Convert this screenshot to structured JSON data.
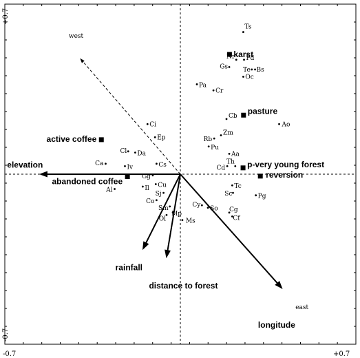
{
  "chart_data": {
    "type": "scatter",
    "title": "",
    "xlabel": "",
    "ylabel": "",
    "xlim": [
      -0.7,
      0.7
    ],
    "ylim": [
      -0.7,
      0.7
    ],
    "x_ticks": [
      "-0.7",
      "+0.7"
    ],
    "y_ticks": [
      "-0.7",
      "+0.7"
    ],
    "grid": false,
    "origin_lines": "dashed",
    "species": [
      {
        "label": "Ts",
        "x": 0.251,
        "y": 0.585
      },
      {
        "label": "Nr",
        "x": 0.223,
        "y": 0.471
      },
      {
        "label": "Pd",
        "x": 0.254,
        "y": 0.471
      },
      {
        "label": "Gs",
        "x": 0.195,
        "y": 0.441
      },
      {
        "label": "Te",
        "x": 0.285,
        "y": 0.431
      },
      {
        "label": "Bs",
        "x": 0.298,
        "y": 0.431
      },
      {
        "label": "Oc",
        "x": 0.251,
        "y": 0.401
      },
      {
        "label": "Pa",
        "x": 0.066,
        "y": 0.37
      },
      {
        "label": "Cr",
        "x": 0.132,
        "y": 0.345
      },
      {
        "label": "Cb",
        "x": 0.184,
        "y": 0.227
      },
      {
        "label": "Ao",
        "x": 0.394,
        "y": 0.206
      },
      {
        "label": "Ci",
        "x": -0.131,
        "y": 0.206
      },
      {
        "label": "Zm",
        "x": 0.162,
        "y": 0.16
      },
      {
        "label": "Ep",
        "x": -0.101,
        "y": 0.152
      },
      {
        "label": "Rb",
        "x": 0.135,
        "y": 0.147
      },
      {
        "label": "Pu",
        "x": 0.113,
        "y": 0.114
      },
      {
        "label": "Cl",
        "x": -0.208,
        "y": 0.094
      },
      {
        "label": "Da",
        "x": -0.18,
        "y": 0.089
      },
      {
        "label": "Aa",
        "x": 0.195,
        "y": 0.084
      },
      {
        "label": "Ca",
        "x": -0.298,
        "y": 0.043
      },
      {
        "label": "Cs",
        "x": -0.095,
        "y": 0.043
      },
      {
        "label": "Iv",
        "x": -0.221,
        "y": 0.033
      },
      {
        "label": "Cd",
        "x": 0.187,
        "y": 0.033
      },
      {
        "label": "Th",
        "x": 0.219,
        "y": 0.033
      },
      {
        "label": "Gg",
        "x": -0.11,
        "y": -0.005
      },
      {
        "label": "Cu",
        "x": -0.098,
        "y": -0.041
      },
      {
        "label": "Il",
        "x": -0.15,
        "y": -0.051
      },
      {
        "label": "Tc",
        "x": 0.207,
        "y": -0.046
      },
      {
        "label": "Al",
        "x": -0.262,
        "y": -0.061
      },
      {
        "label": "Sj",
        "x": -0.067,
        "y": -0.077
      },
      {
        "label": "Sc",
        "x": 0.21,
        "y": -0.077
      },
      {
        "label": "Pg",
        "x": 0.301,
        "y": -0.087
      },
      {
        "label": "Co",
        "x": -0.095,
        "y": -0.107
      },
      {
        "label": "Sm",
        "x": -0.042,
        "y": -0.133
      },
      {
        "label": "Cy",
        "x": 0.086,
        "y": -0.128
      },
      {
        "label": "So",
        "x": 0.11,
        "y": -0.138
      },
      {
        "label": "Mp",
        "x": -0.03,
        "y": -0.158
      },
      {
        "label": "Ol",
        "x": -0.055,
        "y": -0.168
      },
      {
        "label": "Cg",
        "x": 0.195,
        "y": -0.158
      },
      {
        "label": "Cf",
        "x": 0.207,
        "y": -0.174
      },
      {
        "label": "Ms",
        "x": 0.008,
        "y": -0.189
      }
    ],
    "nominal_variables": [
      {
        "label": "karst",
        "x": 0.196,
        "y": 0.493
      },
      {
        "label": "pasture",
        "x": 0.252,
        "y": 0.243
      },
      {
        "label": "active coffee",
        "x": -0.315,
        "y": 0.142
      },
      {
        "label": "p-very young forest",
        "x": 0.25,
        "y": 0.026
      },
      {
        "label": "reversion",
        "x": 0.319,
        "y": -0.008
      },
      {
        "label": "abandoned coffee",
        "x": -0.211,
        "y": -0.01
      }
    ],
    "environmental_arrows": [
      {
        "label": "elevation",
        "x": -0.563,
        "y": 0.0
      },
      {
        "label": "rainfall",
        "x": -0.151,
        "y": -0.312
      },
      {
        "label": "distance to forest",
        "x": -0.056,
        "y": -0.346
      },
      {
        "label": "longitude",
        "x": 0.408,
        "y": -0.473
      }
    ],
    "supplementary_arrows": [
      {
        "label": "west",
        "x": -0.4,
        "y": 0.477
      }
    ],
    "edge_labels": [
      "west",
      "east"
    ]
  }
}
